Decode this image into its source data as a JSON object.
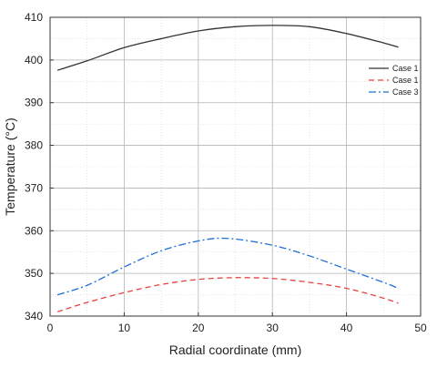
{
  "chart_data": {
    "type": "line",
    "title": "",
    "xlabel": "Radial coordinate (mm)",
    "ylabel": "Temperature (°C)",
    "xlim": [
      0,
      50
    ],
    "ylim": [
      340,
      410
    ],
    "xticks": [
      0,
      10,
      20,
      30,
      40,
      50
    ],
    "yticks": [
      340,
      350,
      360,
      370,
      380,
      390,
      400,
      410
    ],
    "grid": true,
    "legend_position": "top-right",
    "series": [
      {
        "name": "Case 1",
        "color": "#333333",
        "style": "solid",
        "x": [
          1,
          5,
          10,
          15,
          20,
          25,
          30,
          35,
          40,
          45,
          47
        ],
        "values": [
          397.6,
          399.8,
          402.9,
          405.0,
          406.8,
          407.8,
          408.1,
          407.8,
          406.2,
          404.0,
          403.0
        ]
      },
      {
        "name": "Case 1",
        "color": "#e8413e",
        "style": "dashed",
        "x": [
          1,
          5,
          10,
          15,
          20,
          25,
          30,
          35,
          40,
          45,
          47
        ],
        "values": [
          341.0,
          343.2,
          345.5,
          347.4,
          348.6,
          349.0,
          348.8,
          347.9,
          346.5,
          344.2,
          343.0
        ]
      },
      {
        "name": "Case 3",
        "color": "#1f6fd6",
        "style": "dashdot",
        "x": [
          1,
          5,
          10,
          15,
          20,
          24,
          30,
          35,
          40,
          45,
          47
        ],
        "values": [
          345.0,
          347.2,
          351.5,
          355.3,
          357.6,
          358.2,
          356.6,
          354.1,
          351.0,
          347.9,
          346.5
        ]
      }
    ]
  }
}
